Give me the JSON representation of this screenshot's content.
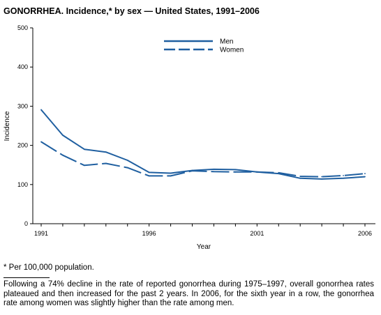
{
  "title": "GONORRHEA. Incidence,* by sex — United States, 1991–2006",
  "footnote": "* Per 100,000 population.",
  "caption": "Following a 74% decline in the rate of reported gonorrhea during 1975–1997, overall gonorrhea rates plateaued and then increased for the past 2 years. In 2006, for the sixth year in a row, the gonorrhea rate among women was slightly higher than the rate among men.",
  "colors": {
    "line": "#1f5fa0",
    "axis": "#000000"
  },
  "chart_data": {
    "type": "line",
    "title": "GONORRHEA. Incidence,* by sex — United States, 1991–2006",
    "xlabel": "Year",
    "ylabel": "Incidence",
    "x": [
      1991,
      1992,
      1993,
      1994,
      1995,
      1996,
      1997,
      1998,
      1999,
      2000,
      2001,
      2002,
      2003,
      2004,
      2005,
      2006
    ],
    "xticks": [
      1991,
      1996,
      2001,
      2006
    ],
    "yticks": [
      0,
      100,
      200,
      300,
      400,
      500
    ],
    "xlim": [
      1991,
      2006
    ],
    "ylim": [
      0,
      500
    ],
    "grid": false,
    "legend": "top-center",
    "series": [
      {
        "name": "Men",
        "style": "solid",
        "values": [
          291,
          226,
          190,
          183,
          162,
          131,
          129,
          136,
          139,
          138,
          132,
          128,
          116,
          114,
          116,
          120
        ]
      },
      {
        "name": "Women",
        "style": "dashed",
        "values": [
          209,
          175,
          149,
          154,
          143,
          122,
          122,
          135,
          133,
          132,
          132,
          130,
          121,
          120,
          123,
          128
        ]
      }
    ]
  }
}
